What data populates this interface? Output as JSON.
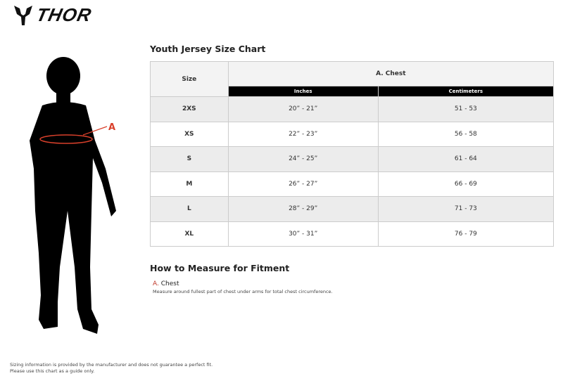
{
  "brand": {
    "name": "THOR"
  },
  "title": "Youth Jersey Size Chart",
  "table": {
    "size_header": "Size",
    "group_header": "A. Chest",
    "sub_headers": [
      "Inches",
      "Centimeters"
    ],
    "rows": [
      {
        "size": "2XS",
        "inches": "20” - 21”",
        "cm": "51 - 53"
      },
      {
        "size": "XS",
        "inches": "22” - 23”",
        "cm": "56 - 58"
      },
      {
        "size": "S",
        "inches": "24” - 25”",
        "cm": "61 - 64"
      },
      {
        "size": "M",
        "inches": "26” - 27”",
        "cm": "66 - 69"
      },
      {
        "size": "L",
        "inches": "28” - 29”",
        "cm": "71 - 73"
      },
      {
        "size": "XL",
        "inches": "30” - 31”",
        "cm": "76 - 79"
      }
    ]
  },
  "figure": {
    "marker": "A",
    "accent": "#d9402b"
  },
  "howto": {
    "title": "How to Measure for Fitment",
    "item_letter": "A.",
    "item_name": "Chest",
    "item_desc": "Measure around fullest part of chest under arms for total chest circumference."
  },
  "footer": [
    "Sizing information is provided by the manufacturer and does not guarantee a perfect fit.",
    "Please use this chart as a guide only."
  ]
}
